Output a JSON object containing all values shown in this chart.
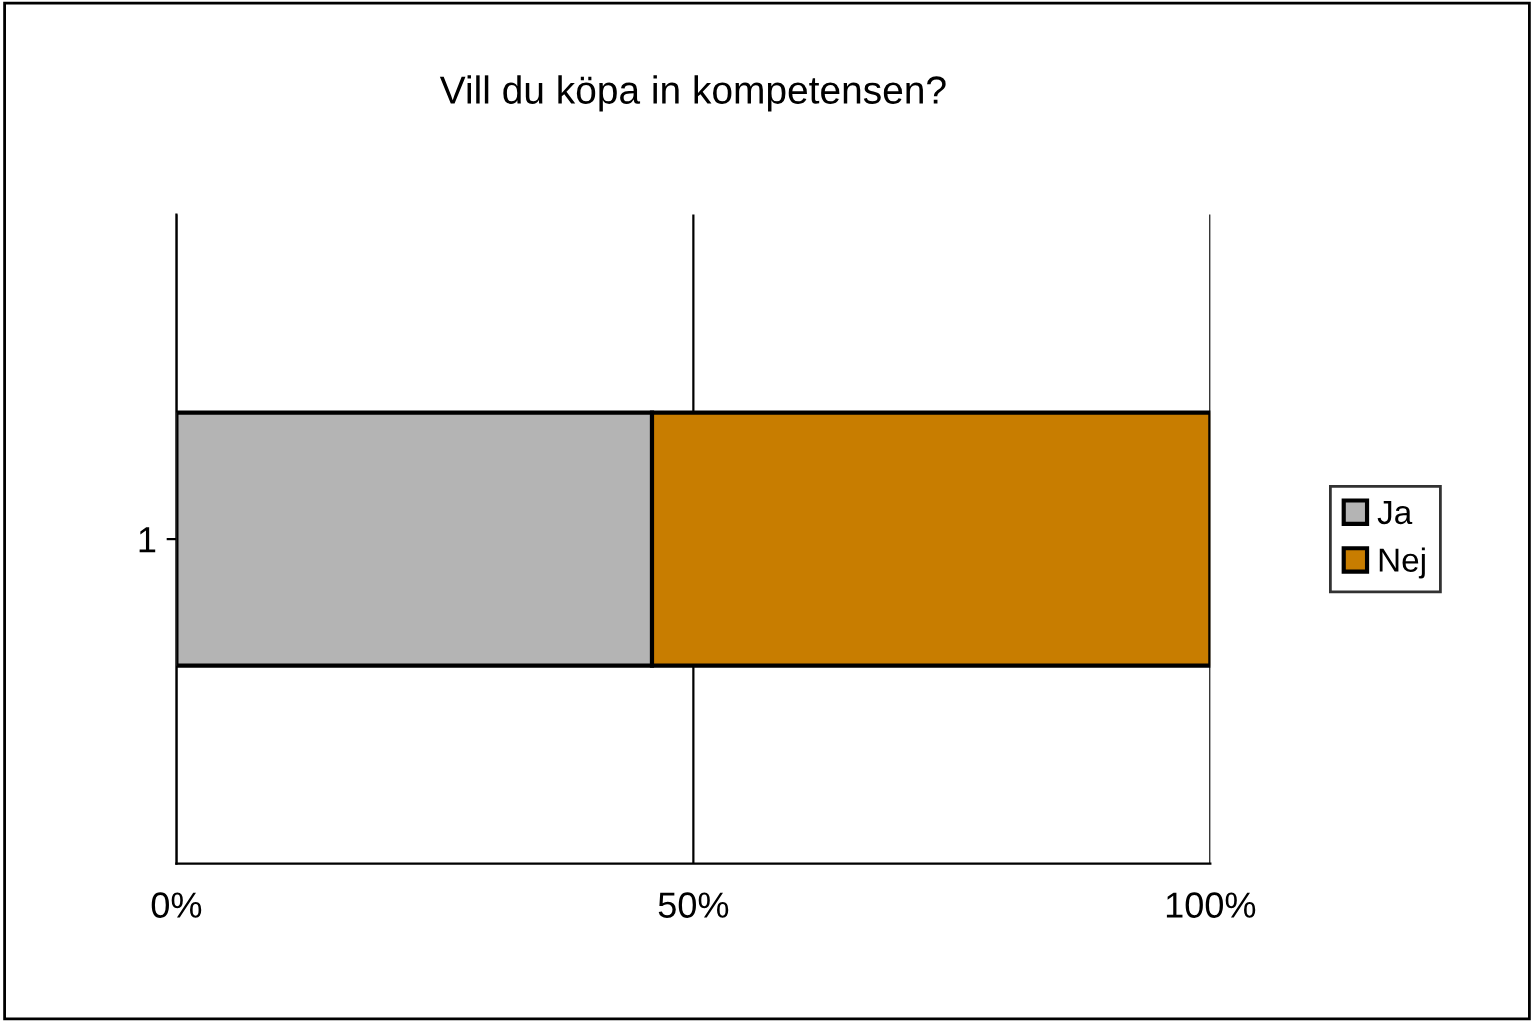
{
  "chart_data": {
    "type": "bar",
    "orientation": "horizontal",
    "stacked": true,
    "title": "Vill du köpa in kompetensen?",
    "categories": [
      "1"
    ],
    "series": [
      {
        "name": "Ja",
        "color": "#b4b4b4",
        "values": [
          46
        ]
      },
      {
        "name": "Nej",
        "color": "#c87d00",
        "values": [
          54
        ]
      }
    ],
    "xlim": [
      0,
      100
    ],
    "xticks": [
      {
        "value": 0,
        "label": "0%"
      },
      {
        "value": 50,
        "label": "50%"
      },
      {
        "value": 100,
        "label": "100%"
      }
    ],
    "grid": "x",
    "legend": "right"
  }
}
